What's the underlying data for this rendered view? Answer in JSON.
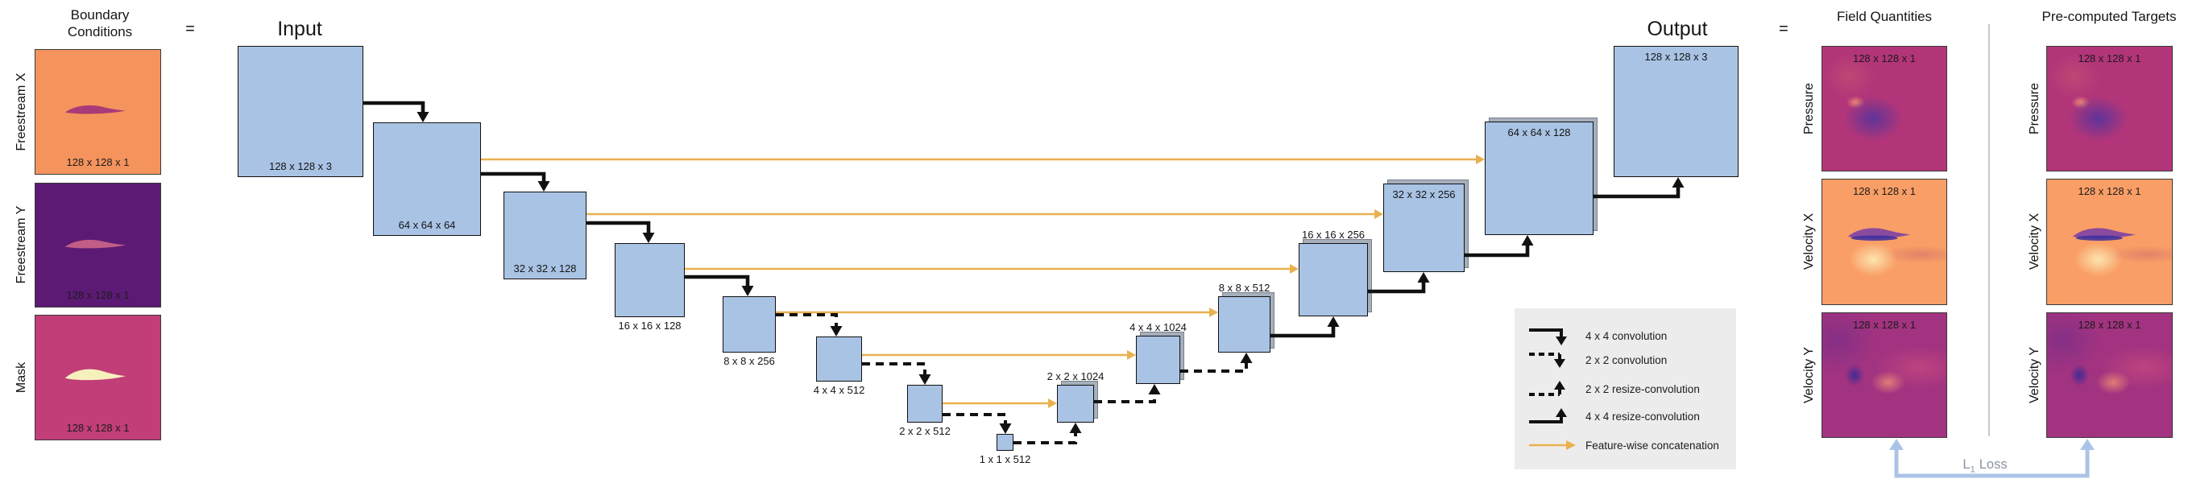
{
  "boundary": {
    "title": "Boundary Conditions",
    "equals": "=",
    "rows": [
      {
        "label": "Freestream X",
        "dim": "128 x 128 x 1"
      },
      {
        "label": "Freestream Y",
        "dim": "128 x 128 x 1"
      },
      {
        "label": "Mask",
        "dim": "128 x 128 x 1"
      }
    ]
  },
  "unet": {
    "input_title": "Input",
    "output_title": "Output",
    "blocks": [
      "128 x 128 x 3",
      "64 x 64 x 64",
      "32 x 32 x 128",
      "16 x 16 x 128",
      "8 x 8 x 256",
      "4 x 4 x 512",
      "2 x 2 x 512",
      "1 x 1 x 512",
      "2 x 2 x 1024",
      "4 x 4 x 1024",
      "8 x 8 x 512",
      "16 x 16 x 256",
      "32 x 32 x 256",
      "64 x 64 x 128",
      "128 x 128 x 3"
    ]
  },
  "legend": {
    "items": [
      {
        "glyph": "solid-down-arrow",
        "label": "4 x 4 convolution"
      },
      {
        "glyph": "dashed-down-arrow",
        "label": "2 x 2 convolution"
      },
      {
        "glyph": "dashed-up-arrow",
        "label": "2 x 2 resize-convolution"
      },
      {
        "glyph": "solid-up-arrow",
        "label": "4 x 4 resize-convolution"
      },
      {
        "glyph": "orange-right-arrow",
        "label": "Feature-wise concatenation"
      }
    ]
  },
  "results": {
    "equals": "=",
    "field_title": "Field Quantities",
    "target_title": "Pre-computed Targets",
    "rows": [
      {
        "label": "Pressure",
        "dim": "128 x 128 x 1"
      },
      {
        "label": "Velocity X",
        "dim": "128 x 128 x 1"
      },
      {
        "label": "Velocity Y",
        "dim": "128 x 128 x 1"
      }
    ],
    "loss": {
      "prefix": "L",
      "sub": "1",
      "suffix": "Loss"
    }
  },
  "colors": {
    "block_fill": "#a9c3e4",
    "block_border": "#111111",
    "block_shadow": "#a6afbb",
    "arrow_black": "#111111",
    "skip_connection_orange": "#e9b050",
    "legend_background": "#ececec",
    "loss_arrow_blue": "#abc4e6",
    "loss_text_gray": "#8a93a3",
    "divider_gray": "#c8c8c8",
    "freestream_x_background": "#f5935d",
    "freestream_x_airfoil": "#a83a77",
    "freestream_y_background": "#5c1a75",
    "freestream_y_airfoil": "#c15d87",
    "mask_background": "#c13e78",
    "mask_airfoil": "#f6f0bd",
    "pressure_background": "#b23579",
    "velocity_x_background": "#f99e66",
    "velocity_x_airfoil": "#8a4b9e",
    "velocity_y_background": "#a23380"
  }
}
